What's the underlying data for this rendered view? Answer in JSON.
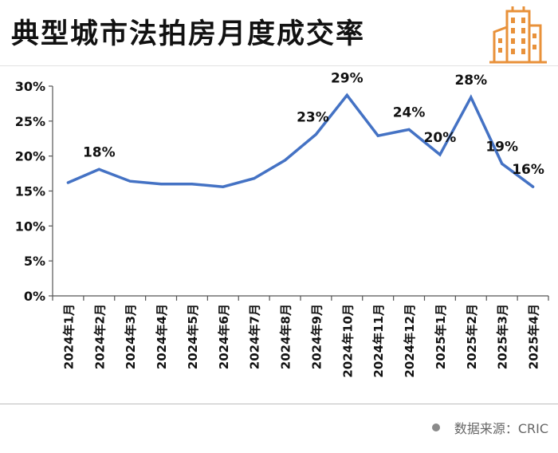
{
  "header": {
    "title": "典型城市法拍房月度成交率"
  },
  "footer": {
    "source": "数据来源：CRIC"
  },
  "colors": {
    "line": "#4472C4",
    "logo": "#E8913A",
    "axis": "#555555"
  },
  "icons": {
    "logo": "building-icon",
    "source_dot": "bullet-dot-icon"
  },
  "chart_data": {
    "type": "line",
    "title": "典型城市法拍房月度成交率",
    "xlabel": "",
    "ylabel": "",
    "categories": [
      "2024年1月",
      "2024年2月",
      "2024年3月",
      "2024年4月",
      "2024年5月",
      "2024年6月",
      "2024年7月",
      "2024年8月",
      "2024年9月",
      "2024年10月",
      "2024年11月",
      "2024年12月",
      "2025年1月",
      "2025年2月",
      "2025年3月",
      "2025年4月"
    ],
    "series": [
      {
        "values": [
          16.2,
          18.1,
          16.4,
          16.0,
          16.0,
          15.6,
          16.8,
          19.4,
          23.1,
          28.7,
          22.9,
          23.8,
          20.2,
          28.4,
          18.9,
          15.6
        ]
      }
    ],
    "data_labels": [
      {
        "index": 1,
        "text": "18%"
      },
      {
        "index": 8,
        "text": "23%"
      },
      {
        "index": 9,
        "text": "29%"
      },
      {
        "index": 11,
        "text": "24%"
      },
      {
        "index": 12,
        "text": "20%"
      },
      {
        "index": 13,
        "text": "28%"
      },
      {
        "index": 14,
        "text": "19%"
      },
      {
        "index": 15,
        "text": "16%"
      }
    ],
    "yticks": [
      "0%",
      "5%",
      "10%",
      "15%",
      "20%",
      "25%",
      "30%"
    ],
    "ylim": [
      0,
      30
    ],
    "grid": false,
    "legend": "none"
  }
}
